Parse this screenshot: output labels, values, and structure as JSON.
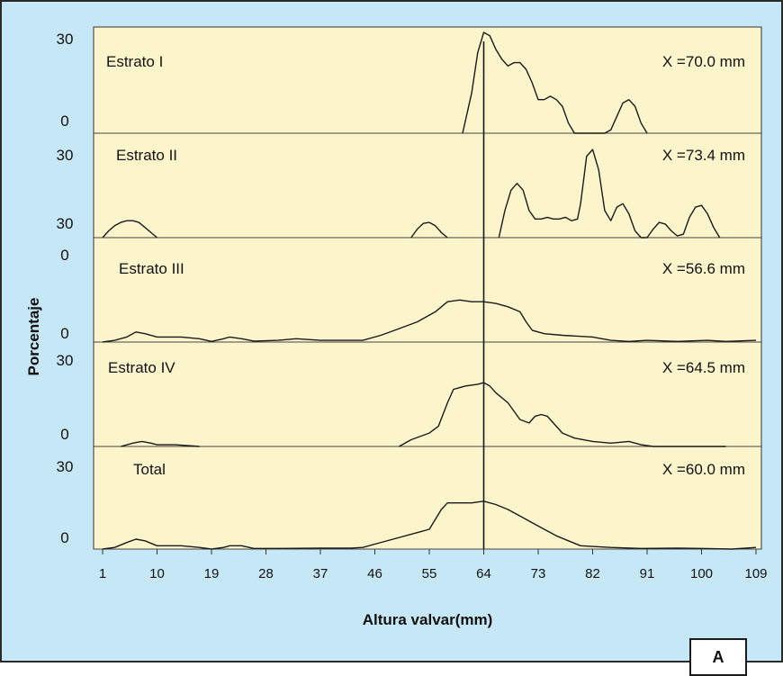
{
  "figure": {
    "panel_label": "A",
    "colors": {
      "outer_background": "#c6e8f6",
      "plot_background": "#fcf5cc",
      "line": "#1a1a1a"
    }
  },
  "chart_data": {
    "type": "line",
    "xlabel": "Altura valvar(mm)",
    "ylabel": "Porcentaje",
    "x_ticks": [
      "1",
      "10",
      "19",
      "28",
      "37",
      "46",
      "55",
      "64",
      "73",
      "82",
      "91",
      "100",
      "109"
    ],
    "xlim": [
      1,
      109
    ],
    "ylim": [
      0,
      30
    ],
    "grid": false,
    "legend": "none",
    "reference_line_x": 64,
    "panels": [
      {
        "name": "Estrato I",
        "mean_label": "X =70.0 mm",
        "y_tick_labels": [
          "30",
          "0"
        ],
        "segments": [
          [
            [
              60.5,
              0
            ],
            [
              62,
              12
            ],
            [
              63,
              24
            ],
            [
              64,
              30
            ],
            [
              65,
              29
            ],
            [
              66,
              25
            ],
            [
              67,
              22
            ],
            [
              68,
              20
            ],
            [
              69,
              21
            ],
            [
              70,
              21
            ],
            [
              71,
              19
            ],
            [
              72,
              15
            ],
            [
              73,
              10
            ],
            [
              74,
              10
            ],
            [
              75,
              11
            ],
            [
              76,
              10
            ],
            [
              77,
              8
            ],
            [
              78,
              3
            ],
            [
              79,
              0
            ],
            [
              82,
              0
            ],
            [
              84,
              0
            ],
            [
              85,
              1
            ],
            [
              86,
              5
            ],
            [
              87,
              9
            ],
            [
              88,
              10
            ],
            [
              89,
              8
            ],
            [
              90,
              3
            ],
            [
              91,
              0
            ]
          ]
        ]
      },
      {
        "name": "Estrato II",
        "mean_label": "X =73.4 mm",
        "y_tick_labels": [
          "30",
          "30",
          "0"
        ],
        "segments": [
          [
            [
              1,
              0
            ],
            [
              2,
              2
            ],
            [
              3,
              3.5
            ],
            [
              4,
              4.5
            ],
            [
              5,
              5
            ],
            [
              6,
              5
            ],
            [
              7,
              4.5
            ],
            [
              8,
              3
            ],
            [
              9,
              1.5
            ],
            [
              10,
              0
            ]
          ],
          [
            [
              52,
              0
            ],
            [
              53,
              2.5
            ],
            [
              54,
              4.2
            ],
            [
              55,
              4.5
            ],
            [
              56,
              3.5
            ],
            [
              57,
              1.5
            ],
            [
              58,
              0
            ]
          ],
          [
            [
              66.5,
              0
            ],
            [
              67.5,
              8
            ],
            [
              68.5,
              14
            ],
            [
              69.5,
              16
            ],
            [
              70.5,
              14
            ],
            [
              71.5,
              8
            ],
            [
              72.5,
              5.5
            ],
            [
              73.5,
              5.5
            ],
            [
              74.5,
              6
            ],
            [
              75.5,
              5.5
            ],
            [
              76.5,
              5.5
            ],
            [
              77.5,
              6
            ],
            [
              78.5,
              5
            ],
            [
              79.5,
              5.5
            ],
            [
              80,
              10
            ],
            [
              81,
              24
            ],
            [
              82,
              26
            ],
            [
              83,
              20
            ],
            [
              84,
              8
            ],
            [
              85,
              5
            ],
            [
              86,
              9
            ],
            [
              87,
              10
            ],
            [
              88,
              7
            ],
            [
              89,
              2
            ],
            [
              90,
              0
            ],
            [
              91,
              0
            ],
            [
              92,
              2.5
            ],
            [
              93,
              4.5
            ],
            [
              94,
              4
            ],
            [
              95,
              2
            ],
            [
              96,
              0.5
            ],
            [
              97,
              1
            ],
            [
              98,
              6
            ],
            [
              99,
              9
            ],
            [
              100,
              9.5
            ],
            [
              101,
              7
            ],
            [
              102,
              3
            ],
            [
              103,
              0
            ]
          ]
        ]
      },
      {
        "name": "Estrato III",
        "mean_label": "X =56.6 mm",
        "y_tick_labels": [
          "0"
        ],
        "segments": [
          [
            [
              1,
              0
            ],
            [
              3,
              0.5
            ],
            [
              5,
              1.5
            ],
            [
              6.5,
              3
            ],
            [
              8,
              2.5
            ],
            [
              10,
              1.5
            ],
            [
              14,
              1.5
            ],
            [
              17,
              1
            ],
            [
              19,
              0.2
            ],
            [
              21,
              1
            ],
            [
              22,
              1.5
            ],
            [
              24,
              1
            ],
            [
              26,
              0.3
            ],
            [
              30,
              0.5
            ],
            [
              33,
              1
            ],
            [
              37,
              0.5
            ],
            [
              40,
              0.5
            ],
            [
              44,
              0.5
            ],
            [
              47,
              2
            ],
            [
              50,
              4
            ],
            [
              53,
              6
            ],
            [
              56,
              9
            ],
            [
              58,
              12
            ],
            [
              60,
              12.5
            ],
            [
              62,
              12
            ],
            [
              64,
              12
            ],
            [
              66,
              11.5
            ],
            [
              68,
              10.5
            ],
            [
              70,
              9
            ],
            [
              71,
              6
            ],
            [
              72,
              3.5
            ],
            [
              74,
              2.5
            ],
            [
              77,
              2
            ],
            [
              82,
              1.5
            ],
            [
              85,
              0.5
            ],
            [
              88,
              0.2
            ],
            [
              91,
              0.5
            ],
            [
              96,
              0.2
            ],
            [
              101,
              0.5
            ],
            [
              104,
              0.2
            ],
            [
              109,
              0.5
            ]
          ]
        ]
      },
      {
        "name": "Estrato IV",
        "mean_label": "X =64.5 mm",
        "y_tick_labels": [
          "30",
          "0"
        ],
        "segments": [
          [
            [
              4,
              0
            ],
            [
              6,
              1
            ],
            [
              7.5,
              1.5
            ],
            [
              9,
              1
            ],
            [
              10,
              0.5
            ],
            [
              13,
              0.5
            ],
            [
              17,
              0
            ]
          ],
          [
            [
              50,
              0
            ],
            [
              52,
              2
            ],
            [
              55,
              4
            ],
            [
              56.5,
              6
            ],
            [
              58,
              13
            ],
            [
              59,
              17
            ],
            [
              61,
              18
            ],
            [
              63,
              18.5
            ],
            [
              64,
              19
            ],
            [
              65,
              18
            ],
            [
              66,
              16
            ],
            [
              68,
              13
            ],
            [
              70,
              8
            ],
            [
              71.5,
              7
            ],
            [
              72.5,
              9
            ],
            [
              73.5,
              9.5
            ],
            [
              74.5,
              9
            ],
            [
              75.5,
              7
            ],
            [
              77,
              4
            ],
            [
              79,
              2.5
            ],
            [
              82,
              1.5
            ],
            [
              85,
              1
            ],
            [
              88,
              1.5
            ],
            [
              90,
              0.5
            ],
            [
              92,
              0
            ],
            [
              100,
              0
            ],
            [
              104,
              0
            ]
          ]
        ]
      },
      {
        "name": "Total",
        "mean_label": "X =60.0 mm",
        "y_tick_labels": [
          "30",
          "0"
        ],
        "segments": [
          [
            [
              1,
              0
            ],
            [
              3,
              0.5
            ],
            [
              5,
              2
            ],
            [
              6.5,
              3
            ],
            [
              8,
              2.5
            ],
            [
              10,
              1
            ],
            [
              14,
              1
            ],
            [
              17,
              0.5
            ],
            [
              19,
              0
            ],
            [
              21,
              0.5
            ],
            [
              22,
              1
            ],
            [
              24,
              1
            ],
            [
              26,
              0.2
            ],
            [
              30,
              0.2
            ],
            [
              37,
              0.3
            ],
            [
              42,
              0.3
            ],
            [
              44,
              0.5
            ],
            [
              46,
              1.5
            ],
            [
              49,
              3
            ],
            [
              53,
              5
            ],
            [
              55,
              6
            ],
            [
              56,
              9
            ],
            [
              57,
              12
            ],
            [
              58,
              14
            ],
            [
              60,
              14
            ],
            [
              62,
              14
            ],
            [
              64,
              14.5
            ],
            [
              66,
              13.5
            ],
            [
              68,
              12
            ],
            [
              70,
              10
            ],
            [
              72,
              8
            ],
            [
              74,
              6
            ],
            [
              76,
              4
            ],
            [
              78,
              2.5
            ],
            [
              80,
              1
            ],
            [
              85,
              0.5
            ],
            [
              90,
              0.2
            ],
            [
              96,
              0.3
            ],
            [
              100,
              0.2
            ],
            [
              105,
              0
            ],
            [
              109,
              0.5
            ]
          ]
        ]
      }
    ]
  }
}
